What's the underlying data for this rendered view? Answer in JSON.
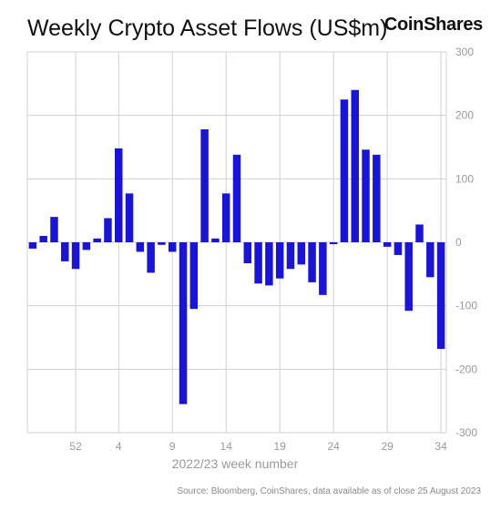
{
  "header": {
    "title": "Weekly Crypto Asset Flows (US$m)",
    "logo_text": "CoinShares"
  },
  "footer": {
    "source": "Source: Bloomberg, CoinShares, data available as of close 25 August 2023"
  },
  "colors": {
    "bar": "#1a14d4",
    "grid": "#d0d0d0",
    "axis_text": "#9a9a9a"
  },
  "chart_data": {
    "type": "bar",
    "title": "Weekly Crypto Asset Flows (US$m)",
    "xlabel": "2022/23 week number",
    "ylabel": "",
    "ylim": [
      -300,
      300
    ],
    "yticks": [
      300,
      200,
      100,
      0,
      -100,
      -200,
      -300
    ],
    "xtick_labels": [
      "52",
      "4",
      "9",
      "14",
      "19",
      "24",
      "29",
      "34"
    ],
    "xtick_positions": [
      52,
      4,
      9,
      14,
      19,
      24,
      29,
      34
    ],
    "categories": [
      "48",
      "49",
      "50",
      "51",
      "52",
      "1",
      "2",
      "3",
      "4",
      "5",
      "6",
      "7",
      "8",
      "9",
      "10",
      "11",
      "12",
      "13",
      "14",
      "15",
      "16",
      "17",
      "18",
      "19",
      "20",
      "21",
      "22",
      "23",
      "24",
      "25",
      "26",
      "27",
      "28",
      "29",
      "30",
      "31",
      "32",
      "33",
      "34"
    ],
    "values": [
      -10,
      10,
      40,
      -30,
      -42,
      -12,
      6,
      38,
      148,
      77,
      -15,
      -48,
      -4,
      -15,
      -255,
      -105,
      178,
      6,
      77,
      138,
      -33,
      -65,
      -68,
      -57,
      -42,
      -35,
      -63,
      -83,
      -3,
      225,
      240,
      146,
      138,
      -7,
      -20,
      -108,
      28,
      -55,
      -168
    ],
    "grid": true,
    "legend": "none"
  }
}
